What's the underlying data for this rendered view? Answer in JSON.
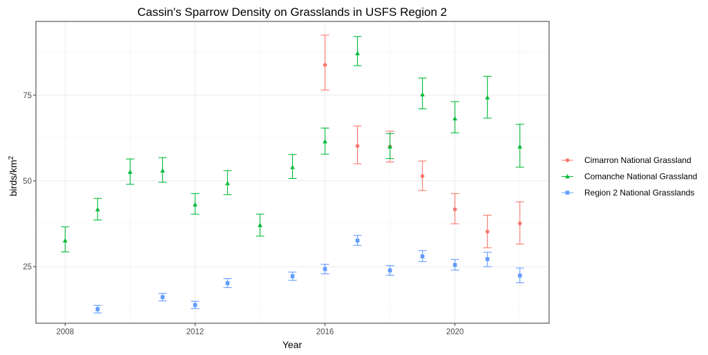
{
  "chart_data": {
    "type": "scatter",
    "title": "Cassin's Sparrow Density on Grasslands in USFS Region 2",
    "xlabel": "Year",
    "ylabel_base": "birds/km",
    "ylabel_sup": "2",
    "xlim": [
      2007.1,
      2022.9
    ],
    "ylim": [
      8.5,
      96.5
    ],
    "x_ticks": [
      2008,
      2012,
      2016,
      2020
    ],
    "x_minor": [
      2010,
      2014,
      2018,
      2022
    ],
    "y_ticks": [
      25,
      50,
      75
    ],
    "y_minor": [
      12.5,
      37.5,
      62.5,
      87.5
    ],
    "grid": true,
    "legend_position": "right",
    "series": [
      {
        "name": "Cimarron National Grassland",
        "color": "#F8766D",
        "marker": "circle",
        "points": [
          {
            "x": 2016,
            "y": 83.8,
            "lo": 76.5,
            "hi": 92.5
          },
          {
            "x": 2017,
            "y": 60.2,
            "lo": 55.0,
            "hi": 66.0
          },
          {
            "x": 2018,
            "y": 60.0,
            "lo": 55.5,
            "hi": 64.5
          },
          {
            "x": 2019,
            "y": 51.4,
            "lo": 47.2,
            "hi": 55.8
          },
          {
            "x": 2020,
            "y": 41.7,
            "lo": 37.5,
            "hi": 46.3
          },
          {
            "x": 2021,
            "y": 35.2,
            "lo": 30.5,
            "hi": 40.0
          },
          {
            "x": 2022,
            "y": 37.6,
            "lo": 31.6,
            "hi": 43.9
          }
        ]
      },
      {
        "name": "Comanche National Grassland",
        "color": "#00BA38",
        "marker": "triangle",
        "points": [
          {
            "x": 2008,
            "y": 32.6,
            "lo": 29.3,
            "hi": 36.6
          },
          {
            "x": 2009,
            "y": 41.7,
            "lo": 38.6,
            "hi": 44.9
          },
          {
            "x": 2010,
            "y": 52.6,
            "lo": 49.0,
            "hi": 56.4
          },
          {
            "x": 2011,
            "y": 53.0,
            "lo": 49.6,
            "hi": 56.8
          },
          {
            "x": 2012,
            "y": 43.1,
            "lo": 40.3,
            "hi": 46.3
          },
          {
            "x": 2013,
            "y": 49.3,
            "lo": 46.0,
            "hi": 53.0
          },
          {
            "x": 2014,
            "y": 37.1,
            "lo": 33.9,
            "hi": 40.3
          },
          {
            "x": 2015,
            "y": 54.0,
            "lo": 50.7,
            "hi": 57.7
          },
          {
            "x": 2016,
            "y": 61.5,
            "lo": 57.8,
            "hi": 65.4
          },
          {
            "x": 2017,
            "y": 87.2,
            "lo": 83.6,
            "hi": 92.1
          },
          {
            "x": 2018,
            "y": 60.0,
            "lo": 56.5,
            "hi": 63.8
          },
          {
            "x": 2019,
            "y": 75.2,
            "lo": 71.0,
            "hi": 80.0
          },
          {
            "x": 2020,
            "y": 68.2,
            "lo": 64.0,
            "hi": 73.1
          },
          {
            "x": 2021,
            "y": 74.3,
            "lo": 68.3,
            "hi": 80.5
          },
          {
            "x": 2022,
            "y": 60.0,
            "lo": 54.0,
            "hi": 66.5
          }
        ]
      },
      {
        "name": "Region 2 National Grasslands",
        "color": "#619CFF",
        "marker": "square",
        "points": [
          {
            "x": 2009,
            "y": 12.6,
            "lo": 11.5,
            "hi": 13.7
          },
          {
            "x": 2011,
            "y": 16.1,
            "lo": 15.0,
            "hi": 17.2
          },
          {
            "x": 2012,
            "y": 13.8,
            "lo": 12.8,
            "hi": 14.9
          },
          {
            "x": 2013,
            "y": 20.2,
            "lo": 18.9,
            "hi": 21.5
          },
          {
            "x": 2015,
            "y": 22.2,
            "lo": 21.0,
            "hi": 23.4
          },
          {
            "x": 2016,
            "y": 24.3,
            "lo": 22.9,
            "hi": 25.7
          },
          {
            "x": 2017,
            "y": 32.6,
            "lo": 31.2,
            "hi": 34.1
          },
          {
            "x": 2018,
            "y": 23.9,
            "lo": 22.5,
            "hi": 25.3
          },
          {
            "x": 2019,
            "y": 28.0,
            "lo": 26.5,
            "hi": 29.7
          },
          {
            "x": 2020,
            "y": 25.5,
            "lo": 24.0,
            "hi": 27.1
          },
          {
            "x": 2021,
            "y": 27.2,
            "lo": 25.0,
            "hi": 29.2
          },
          {
            "x": 2022,
            "y": 22.4,
            "lo": 20.3,
            "hi": 24.6
          }
        ]
      }
    ]
  }
}
